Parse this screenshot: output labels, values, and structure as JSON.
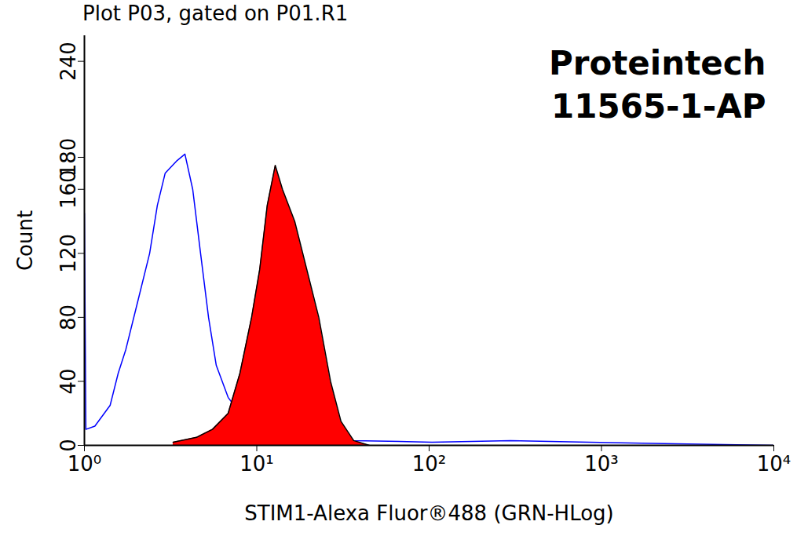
{
  "chart_data": {
    "type": "histogram",
    "title": "Plot P03, gated on P01.R1",
    "x_label": "STIM1-Alexa Fluor®488 (GRN-HLog)",
    "y_label": "Count",
    "annotations": [
      "Proteintech",
      "11565-1-AP"
    ],
    "log": "x",
    "xlim": [
      1,
      10000
    ],
    "xticks": [
      {
        "value": 1,
        "label": "10⁰"
      },
      {
        "value": 10,
        "label": "10¹"
      },
      {
        "value": 100,
        "label": "10²"
      },
      {
        "value": 1000,
        "label": "10³"
      },
      {
        "value": 10000,
        "label": "10⁴"
      }
    ],
    "ylim": [
      0,
      256
    ],
    "yticks": [
      0,
      40,
      80,
      120,
      160,
      180,
      240
    ],
    "series": [
      {
        "type": "line",
        "color": "#0000ff",
        "x": [
          1.0,
          1.02,
          1.15,
          1.41,
          1.57,
          1.74,
          2.04,
          2.39,
          2.65,
          2.94,
          3.45,
          3.83,
          4.25,
          4.72,
          5.25,
          5.82,
          6.82,
          7.98,
          9.33,
          11.5,
          17.5,
          36.5,
          104,
          297,
          850,
          2680,
          10000
        ],
        "values": [
          145,
          10,
          12,
          25,
          45,
          60,
          90,
          120,
          150,
          170,
          178,
          182,
          160,
          120,
          80,
          50,
          30,
          20,
          12,
          8,
          5,
          3,
          2,
          3,
          2,
          1,
          0
        ]
      },
      {
        "type": "area",
        "color": "#ff0000",
        "x": [
          3.27,
          4.47,
          5.53,
          6.82,
          7.98,
          9.33,
          10.4,
          11.5,
          12.8,
          14.1,
          16.6,
          19.5,
          22.9,
          26.8,
          30.8,
          36.5,
          45
        ],
        "values": [
          2,
          5,
          10,
          20,
          45,
          80,
          110,
          150,
          175,
          160,
          140,
          110,
          80,
          40,
          15,
          3,
          0
        ]
      }
    ]
  }
}
